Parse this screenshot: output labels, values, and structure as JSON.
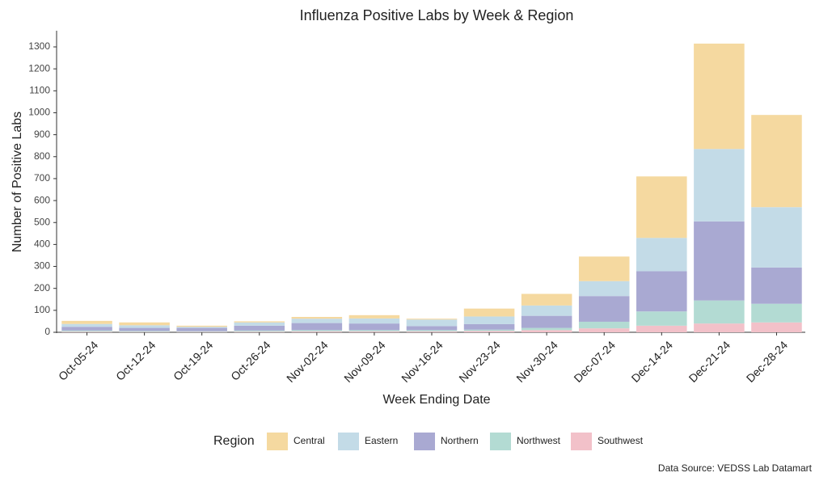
{
  "chart_data": {
    "type": "bar",
    "stacked": true,
    "title": "Influenza Positive Labs by Week & Region",
    "x_label": "Week Ending Date",
    "y_label": "Number of Positive Labs",
    "legend_title": "Region",
    "caption": "Data Source: VEDSS Lab Datamart",
    "categories": [
      "Oct-05-24",
      "Oct-12-24",
      "Oct-19-24",
      "Oct-26-24",
      "Nov-02-24",
      "Nov-09-24",
      "Nov-16-24",
      "Nov-23-24",
      "Nov-30-24",
      "Dec-07-24",
      "Dec-14-24",
      "Dec-21-24",
      "Dec-28-24"
    ],
    "series": [
      {
        "name": "Central",
        "color": "#f5d9a0",
        "values": [
          14,
          13,
          5,
          5,
          8,
          15,
          4,
          36,
          53,
          112,
          280,
          480,
          420
        ]
      },
      {
        "name": "Eastern",
        "color": "#c3dbe7",
        "values": [
          13,
          12,
          5,
          15,
          20,
          23,
          30,
          35,
          47,
          68,
          152,
          330,
          275
        ]
      },
      {
        "name": "Northern",
        "color": "#a9a9d2",
        "values": [
          17,
          14,
          15,
          22,
          32,
          30,
          18,
          25,
          55,
          117,
          183,
          360,
          165
        ]
      },
      {
        "name": "Northwest",
        "color": "#b3dbd3",
        "values": [
          5,
          4,
          3,
          5,
          6,
          6,
          6,
          6,
          10,
          30,
          65,
          105,
          85
        ]
      },
      {
        "name": "Southwest",
        "color": "#f2c1c9",
        "values": [
          3,
          2,
          2,
          3,
          4,
          4,
          4,
          6,
          10,
          18,
          30,
          40,
          45
        ]
      }
    ],
    "ylim": [
      0,
      1370
    ],
    "yticks": [
      0,
      100,
      200,
      300,
      400,
      500,
      600,
      700,
      800,
      900,
      1000,
      1100,
      1200,
      1300
    ],
    "grid": false,
    "legend_position": "bottom"
  }
}
